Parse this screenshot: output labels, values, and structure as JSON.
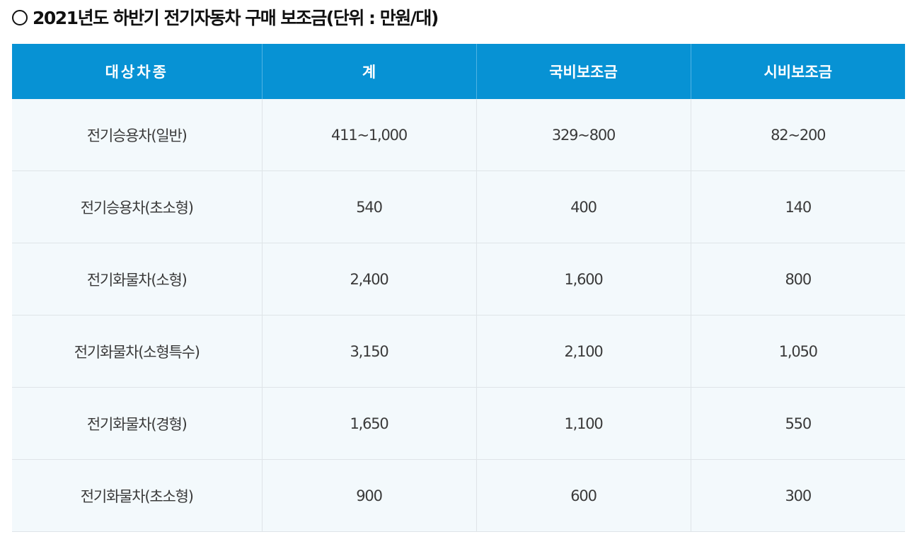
{
  "title": "2021년도 하반기 전기자동차 구매 보조금(단위 : 만원/대)",
  "table": {
    "headers": [
      "대상차종",
      "계",
      "국비보조금",
      "시비보조금"
    ],
    "rows": [
      [
        "전기승용차(일반)",
        "411~1,000",
        "329~800",
        "82~200"
      ],
      [
        "전기승용차(초소형)",
        "540",
        "400",
        "140"
      ],
      [
        "전기화물차(소형)",
        "2,400",
        "1,600",
        "800"
      ],
      [
        "전기화물차(소형특수)",
        "3,150",
        "2,100",
        "1,050"
      ],
      [
        "전기화물차(경형)",
        "1,650",
        "1,100",
        "550"
      ],
      [
        "전기화물차(초소형)",
        "900",
        "600",
        "300"
      ]
    ]
  },
  "colors": {
    "header_bg": "#0792d4",
    "header_text": "#ffffff",
    "row_bg": "#f3f9fc",
    "border": "#dfe4e8"
  },
  "icons": {
    "title_bullet": "circle-icon"
  }
}
